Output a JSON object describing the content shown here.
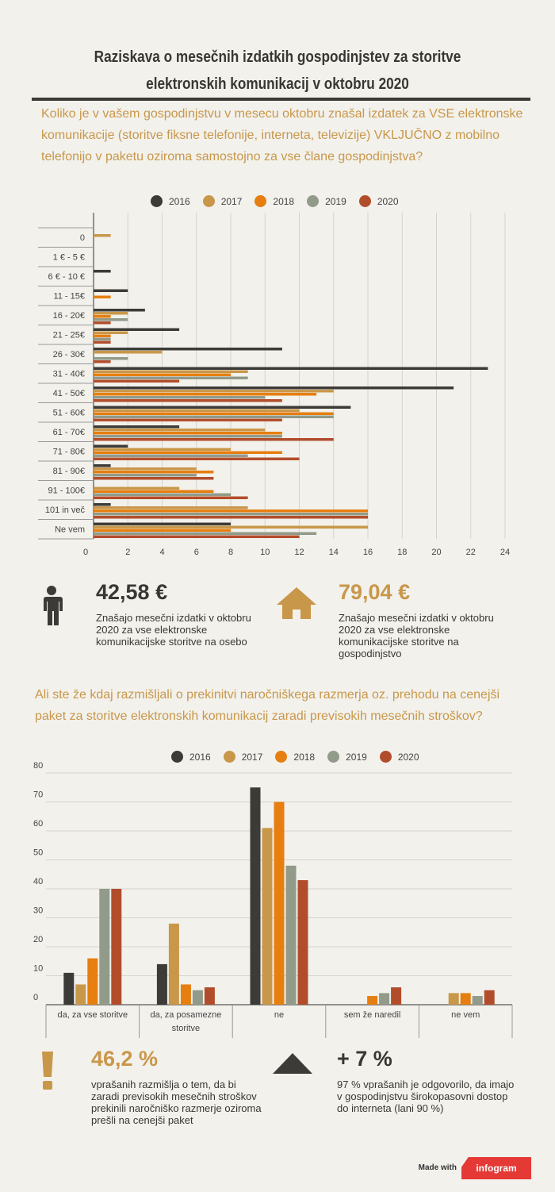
{
  "title": "Raziskava o mesečnih izdatkih gospodinjstev za storitve elektronskih komunikacij v oktobru 2020",
  "colors": {
    "2016": "#3d3b37",
    "2017": "#c9974a",
    "2018": "#e67e10",
    "2019": "#929a8a",
    "2020": "#b24d2c",
    "accent": "#c9974a"
  },
  "q1": {
    "text": "Koliko je v vašem gospodinjstvu v mesecu oktobru znašal izdatek za VSE elektronske komunikacije (storitve fiksne telefonije, interneta, televizije) VKLJUČNO z mobilno telefonijo v paketu oziroma samostojno za vse člane gospodinjstva?"
  },
  "legend": [
    "2016",
    "2017",
    "2018",
    "2019",
    "2020"
  ],
  "chart_data": [
    {
      "type": "bar",
      "orientation": "horizontal",
      "categories": [
        "0",
        "1 € - 5 €",
        "6 € - 10 €",
        "11 - 15€",
        "16 - 20€",
        "21 - 25€",
        "26 - 30€",
        "31 - 40€",
        "41 - 50€",
        "51 - 60€",
        "61 - 70€",
        "71 - 80€",
        "81 - 90€",
        "91 - 100€",
        "101 in več",
        "Ne vem"
      ],
      "series": [
        {
          "name": "2016",
          "values": [
            0,
            0,
            1,
            2,
            3,
            5,
            11,
            23,
            21,
            15,
            5,
            2,
            1,
            0,
            1,
            8
          ]
        },
        {
          "name": "2017",
          "values": [
            1,
            0,
            0,
            0,
            2,
            2,
            4,
            9,
            14,
            12,
            10,
            8,
            6,
            5,
            9,
            16
          ]
        },
        {
          "name": "2018",
          "values": [
            0,
            0,
            0,
            1,
            1,
            1,
            0,
            8,
            13,
            14,
            11,
            11,
            7,
            7,
            16,
            8
          ]
        },
        {
          "name": "2019",
          "values": [
            0,
            0,
            0,
            0,
            2,
            1,
            2,
            9,
            10,
            14,
            11,
            9,
            6,
            8,
            16,
            13
          ]
        },
        {
          "name": "2020",
          "values": [
            0,
            0,
            0,
            0,
            1,
            1,
            1,
            5,
            11,
            11,
            14,
            12,
            7,
            9,
            16,
            12
          ]
        }
      ],
      "xticks": [
        "0",
        "2",
        "4",
        "6",
        "8",
        "10",
        "12",
        "14",
        "16",
        "18",
        "20",
        "22",
        "24"
      ],
      "xlim": [
        0,
        24
      ],
      "grid": true,
      "legend_position": "top"
    },
    {
      "type": "bar",
      "categories": [
        "da, za vse storitve",
        "da, za posamezne storitve",
        "ne",
        "sem že naredil",
        "ne vem"
      ],
      "series": [
        {
          "name": "2016",
          "values": [
            11,
            14,
            75,
            0,
            0
          ]
        },
        {
          "name": "2017",
          "values": [
            7,
            28,
            61,
            0,
            4
          ]
        },
        {
          "name": "2018",
          "values": [
            16,
            7,
            70,
            3,
            4
          ]
        },
        {
          "name": "2019",
          "values": [
            40,
            5,
            48,
            4,
            3
          ]
        },
        {
          "name": "2020",
          "values": [
            40,
            6,
            43,
            6,
            5
          ]
        }
      ],
      "yticks": [
        "0",
        "10",
        "20",
        "30",
        "40",
        "50",
        "60",
        "70",
        "80"
      ],
      "ylim": [
        0,
        80
      ],
      "grid": true,
      "legend_position": "top"
    }
  ],
  "stats": {
    "person": {
      "value": "42,58 €",
      "text": "Znašajo mesečni izdatki  v oktobru 2020 za vse elektronske komunikacijske storitve na osebo"
    },
    "house": {
      "value": "79,04 €",
      "text": "Znašajo mesečni izdatki  v oktobru 2020 za vse elektronske komunikacijske storitve na gospodinjstvo"
    },
    "exclaim": {
      "value": "46,2 %",
      "text": "vprašanih razmišlja o tem, da bi zaradi previsokih mesečnih stroškov prekinili naročniško razmerje oziroma prešli na cenejši paket"
    },
    "up": {
      "value": "+ 7 %",
      "text": "97 % vprašanih je odgovorilo, da imajo v gospodinjstvu širokopasovni dostop do interneta (lani 90 %)"
    }
  },
  "q2": {
    "text": "Ali ste že kdaj razmišljali o prekinitvi naročniškega razmerja oz. prehodu na cenejši paket za storitve elektronskih komunikacij zaradi previsokih mesečnih stroškov?"
  },
  "footer": {
    "made_with": "Made with",
    "brand": "infogram"
  }
}
